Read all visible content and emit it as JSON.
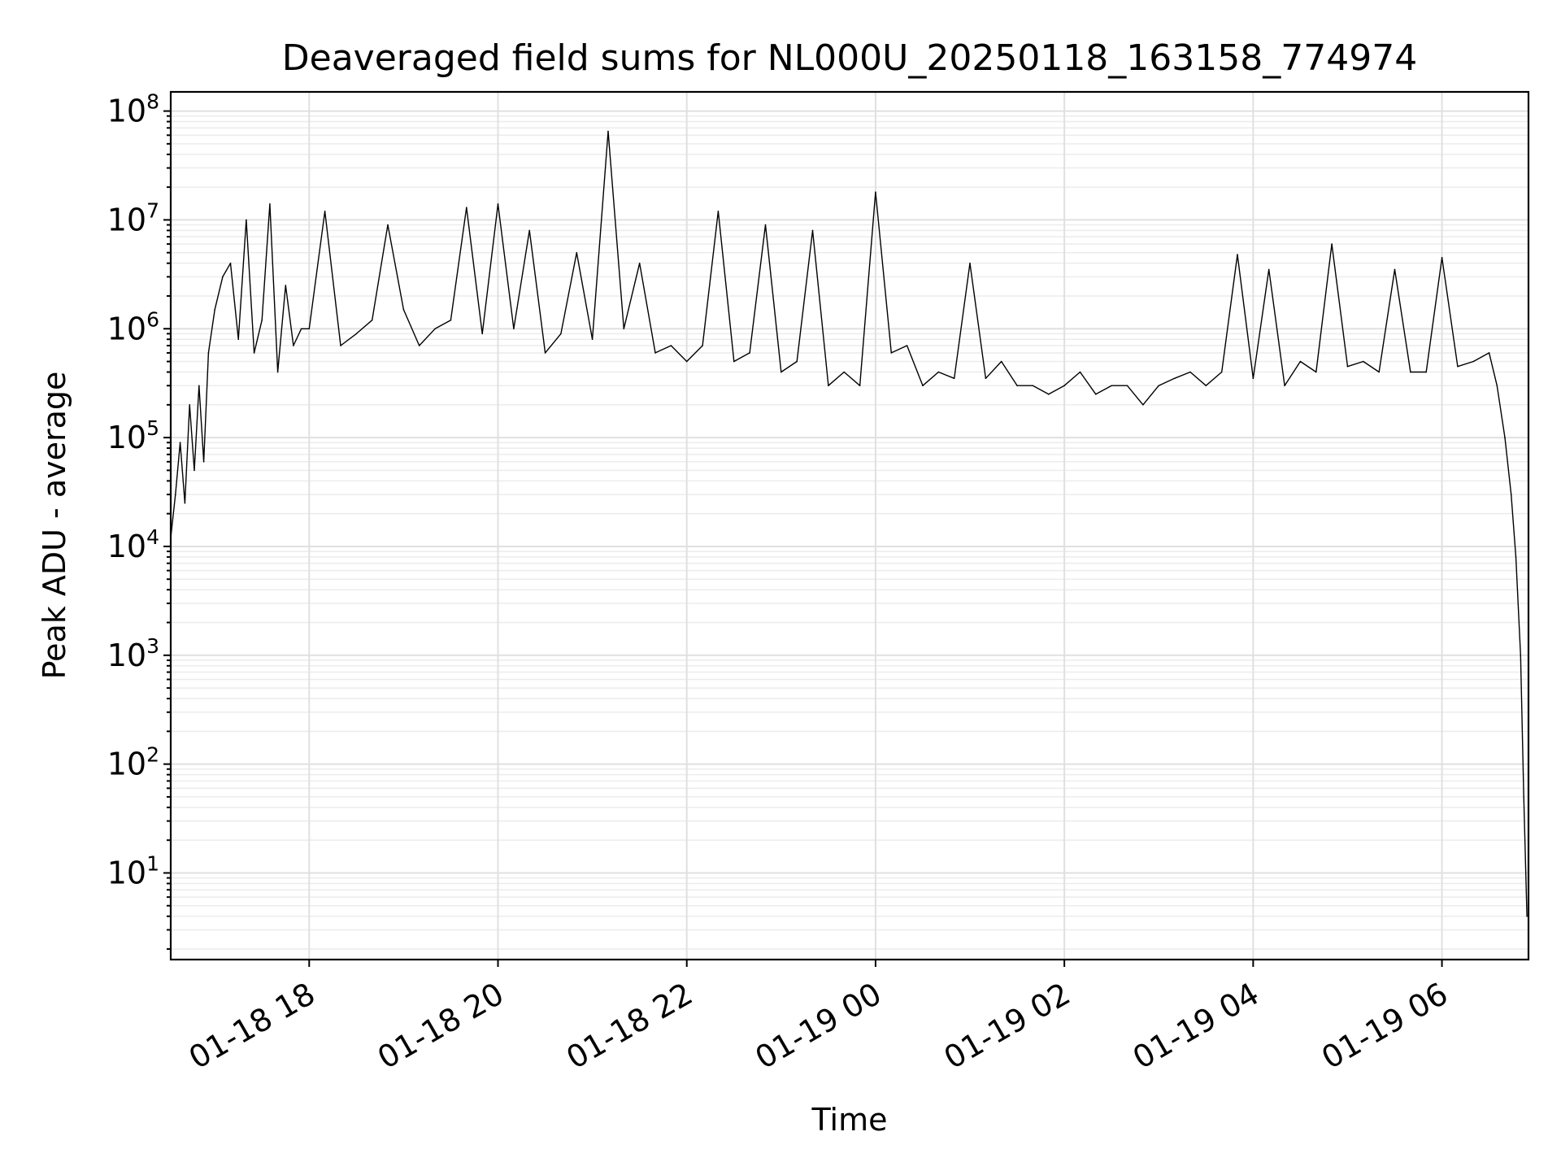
{
  "chart_data": {
    "type": "line",
    "title": "Deaveraged field sums for NL000U_20250118_163158_774974",
    "xlabel": "Time",
    "ylabel": "Peak ADU - average",
    "xscale": "time",
    "yscale": "log",
    "xlim": [
      "2025-01-18 16:32",
      "2025-01-19 06:55"
    ],
    "ylim": [
      1.6,
      150000000.0
    ],
    "grid": true,
    "legend": "none",
    "line_color": "#000000",
    "x_ticks": [
      {
        "value": "2025-01-18 18:00",
        "label": "01-18 18"
      },
      {
        "value": "2025-01-18 20:00",
        "label": "01-18 20"
      },
      {
        "value": "2025-01-18 22:00",
        "label": "01-18 22"
      },
      {
        "value": "2025-01-19 00:00",
        "label": "01-19 00"
      },
      {
        "value": "2025-01-19 02:00",
        "label": "01-19 02"
      },
      {
        "value": "2025-01-19 04:00",
        "label": "01-19 04"
      },
      {
        "value": "2025-01-19 06:00",
        "label": "01-19 06"
      }
    ],
    "y_ticks": [
      {
        "value": 10,
        "base": "10",
        "exp": "1"
      },
      {
        "value": 100,
        "base": "10",
        "exp": "2"
      },
      {
        "value": 1000,
        "base": "10",
        "exp": "3"
      },
      {
        "value": 10000,
        "base": "10",
        "exp": "4"
      },
      {
        "value": 100000,
        "base": "10",
        "exp": "5"
      },
      {
        "value": 1000000,
        "base": "10",
        "exp": "6"
      },
      {
        "value": 10000000,
        "base": "10",
        "exp": "7"
      },
      {
        "value": 100000000,
        "base": "10",
        "exp": "8"
      }
    ],
    "series": [
      {
        "x": [
          "2025-01-18 16:32",
          "2025-01-18 16:35",
          "2025-01-18 16:38",
          "2025-01-18 16:41",
          "2025-01-18 16:44",
          "2025-01-18 16:47",
          "2025-01-18 16:50",
          "2025-01-18 16:53",
          "2025-01-18 16:56",
          "2025-01-18 17:00",
          "2025-01-18 17:05",
          "2025-01-18 17:10",
          "2025-01-18 17:15",
          "2025-01-18 17:20",
          "2025-01-18 17:25",
          "2025-01-18 17:30",
          "2025-01-18 17:35",
          "2025-01-18 17:40",
          "2025-01-18 17:45",
          "2025-01-18 17:50",
          "2025-01-18 17:55",
          "2025-01-18 18:00",
          "2025-01-18 18:10",
          "2025-01-18 18:20",
          "2025-01-18 18:30",
          "2025-01-18 18:40",
          "2025-01-18 18:50",
          "2025-01-18 19:00",
          "2025-01-18 19:10",
          "2025-01-18 19:20",
          "2025-01-18 19:30",
          "2025-01-18 19:40",
          "2025-01-18 19:50",
          "2025-01-18 20:00",
          "2025-01-18 20:10",
          "2025-01-18 20:20",
          "2025-01-18 20:30",
          "2025-01-18 20:40",
          "2025-01-18 20:50",
          "2025-01-18 21:00",
          "2025-01-18 21:10",
          "2025-01-18 21:20",
          "2025-01-18 21:30",
          "2025-01-18 21:40",
          "2025-01-18 21:50",
          "2025-01-18 22:00",
          "2025-01-18 22:10",
          "2025-01-18 22:20",
          "2025-01-18 22:30",
          "2025-01-18 22:40",
          "2025-01-18 22:50",
          "2025-01-18 23:00",
          "2025-01-18 23:10",
          "2025-01-18 23:20",
          "2025-01-18 23:30",
          "2025-01-18 23:40",
          "2025-01-18 23:50",
          "2025-01-19 00:00",
          "2025-01-19 00:10",
          "2025-01-19 00:20",
          "2025-01-19 00:30",
          "2025-01-19 00:40",
          "2025-01-19 00:50",
          "2025-01-19 01:00",
          "2025-01-19 01:10",
          "2025-01-19 01:20",
          "2025-01-19 01:30",
          "2025-01-19 01:40",
          "2025-01-19 01:50",
          "2025-01-19 02:00",
          "2025-01-19 02:10",
          "2025-01-19 02:20",
          "2025-01-19 02:30",
          "2025-01-19 02:40",
          "2025-01-19 02:50",
          "2025-01-19 03:00",
          "2025-01-19 03:10",
          "2025-01-19 03:20",
          "2025-01-19 03:30",
          "2025-01-19 03:40",
          "2025-01-19 03:50",
          "2025-01-19 04:00",
          "2025-01-19 04:10",
          "2025-01-19 04:20",
          "2025-01-19 04:30",
          "2025-01-19 04:40",
          "2025-01-19 04:50",
          "2025-01-19 05:00",
          "2025-01-19 05:10",
          "2025-01-19 05:20",
          "2025-01-19 05:30",
          "2025-01-19 05:40",
          "2025-01-19 05:50",
          "2025-01-19 06:00",
          "2025-01-19 06:10",
          "2025-01-19 06:20",
          "2025-01-19 06:30",
          "2025-01-19 06:35",
          "2025-01-19 06:40",
          "2025-01-19 06:44",
          "2025-01-19 06:47",
          "2025-01-19 06:50",
          "2025-01-19 06:52",
          "2025-01-19 06:54"
        ],
        "y": [
          12000,
          30000,
          90000,
          25000,
          200000,
          50000,
          300000,
          60000,
          600000,
          1500000,
          3000000,
          4000000,
          800000,
          10000000,
          600000,
          1200000,
          14000000,
          400000,
          2500000,
          700000,
          1000000,
          1000000,
          12000000,
          700000,
          900000,
          1200000,
          9000000,
          1500000,
          700000,
          1000000,
          1200000,
          13000000,
          900000,
          14000000,
          1000000,
          8000000,
          600000,
          900000,
          5000000,
          800000,
          65000000,
          1000000,
          4000000,
          600000,
          700000,
          500000,
          700000,
          12000000,
          500000,
          600000,
          9000000,
          400000,
          500000,
          8000000,
          300000,
          400000,
          300000,
          18000000,
          600000,
          700000,
          300000,
          400000,
          350000,
          4000000,
          350000,
          500000,
          300000,
          300000,
          250000,
          300000,
          400000,
          250000,
          300000,
          300000,
          200000,
          300000,
          350000,
          400000,
          300000,
          400000,
          4800000,
          350000,
          3500000,
          300000,
          500000,
          400000,
          6000000,
          450000,
          500000,
          400000,
          3500000,
          400000,
          400000,
          4500000,
          450000,
          500000,
          600000,
          300000,
          100000,
          30000,
          8000,
          1000,
          50,
          4
        ]
      }
    ]
  }
}
